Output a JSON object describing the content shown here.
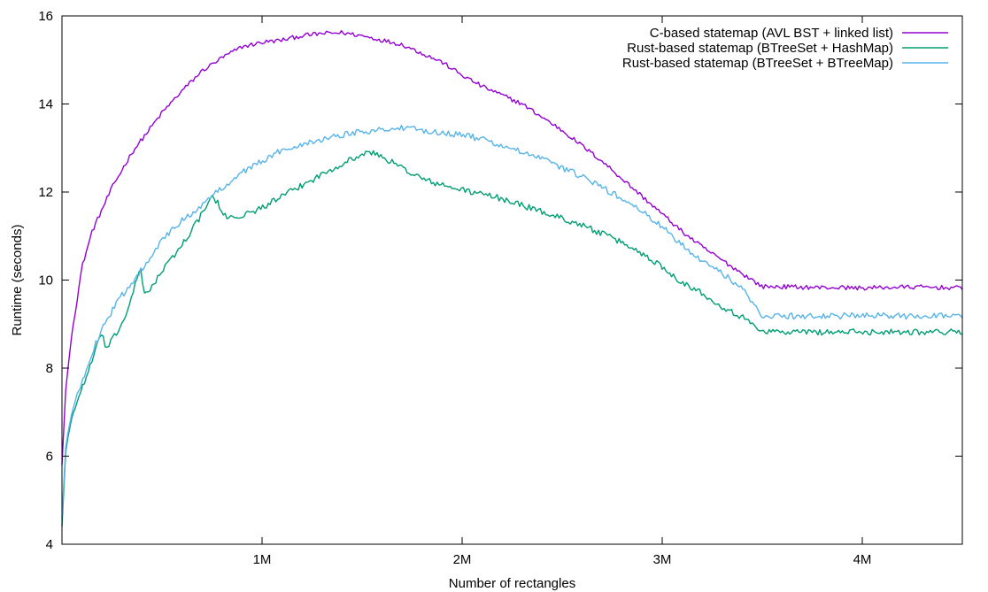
{
  "chart_data": {
    "type": "line",
    "title": "",
    "xlabel": "Number of rectangles",
    "ylabel": "Runtime (seconds)",
    "xlim": [
      0,
      4500000
    ],
    "ylim": [
      4,
      16
    ],
    "grid": false,
    "legend_position": "top-right",
    "x_ticks": [
      {
        "value": 1000000,
        "label": "1M"
      },
      {
        "value": 2000000,
        "label": "2M"
      },
      {
        "value": 3000000,
        "label": "3M"
      },
      {
        "value": 4000000,
        "label": "4M"
      }
    ],
    "y_ticks": [
      {
        "value": 4,
        "label": "4"
      },
      {
        "value": 6,
        "label": "6"
      },
      {
        "value": 8,
        "label": "8"
      },
      {
        "value": 10,
        "label": "10"
      },
      {
        "value": 12,
        "label": "12"
      },
      {
        "value": 14,
        "label": "14"
      },
      {
        "value": 16,
        "label": "16"
      }
    ],
    "series": [
      {
        "name": "C-based statemap (AVL BST + linked list)",
        "color": "#9400d3",
        "x": [
          0,
          20000,
          50000,
          100000,
          150000,
          200000,
          250000,
          300000,
          350000,
          400000,
          450000,
          500000,
          600000,
          700000,
          800000,
          900000,
          1000000,
          1100000,
          1200000,
          1300000,
          1400000,
          1500000,
          1600000,
          1700000,
          1800000,
          1900000,
          2000000,
          2100000,
          2200000,
          2300000,
          2400000,
          2500000,
          2600000,
          2700000,
          2800000,
          2900000,
          3000000,
          3100000,
          3200000,
          3300000,
          3400000,
          3500000,
          3600000,
          3700000,
          3800000,
          3900000,
          4000000,
          4100000,
          4200000,
          4300000,
          4400000,
          4500000
        ],
        "values": [
          5.8,
          7.6,
          8.8,
          10.3,
          11.1,
          11.6,
          12.1,
          12.5,
          12.9,
          13.2,
          13.5,
          13.8,
          14.3,
          14.75,
          15.05,
          15.3,
          15.4,
          15.45,
          15.55,
          15.6,
          15.62,
          15.55,
          15.45,
          15.35,
          15.15,
          14.95,
          14.65,
          14.4,
          14.2,
          14.0,
          13.7,
          13.4,
          13.05,
          12.7,
          12.3,
          11.9,
          11.5,
          11.1,
          10.75,
          10.45,
          10.15,
          9.85,
          9.85,
          9.84,
          9.83,
          9.83,
          9.82,
          9.83,
          9.84,
          9.84,
          9.83,
          9.82
        ],
        "jitter": 0.05
      },
      {
        "name": "Rust-based statemap (BTreeSet + HashMap)",
        "color": "#009e73",
        "x": [
          0,
          20000,
          50000,
          100000,
          150000,
          200000,
          220000,
          300000,
          350000,
          390000,
          410000,
          450000,
          500000,
          600000,
          700000,
          750000,
          780000,
          800000,
          900000,
          1000000,
          1100000,
          1200000,
          1300000,
          1400000,
          1500000,
          1550000,
          1600000,
          1700000,
          1800000,
          1900000,
          2000000,
          2100000,
          2200000,
          2300000,
          2400000,
          2500000,
          2600000,
          2700000,
          2800000,
          2900000,
          3000000,
          3100000,
          3200000,
          3300000,
          3400000,
          3500000,
          3600000,
          3800000,
          4000000,
          4200000,
          4400000,
          4500000
        ],
        "values": [
          4.4,
          6.2,
          6.9,
          7.55,
          8.15,
          8.85,
          8.4,
          9.0,
          9.6,
          10.3,
          9.7,
          9.85,
          10.2,
          10.8,
          11.5,
          11.9,
          11.75,
          11.45,
          11.45,
          11.65,
          11.9,
          12.15,
          12.4,
          12.65,
          12.85,
          12.9,
          12.8,
          12.55,
          12.3,
          12.15,
          12.05,
          11.95,
          11.85,
          11.7,
          11.55,
          11.4,
          11.25,
          11.05,
          10.85,
          10.6,
          10.3,
          9.95,
          9.7,
          9.4,
          9.15,
          8.85,
          8.82,
          8.82,
          8.82,
          8.83,
          8.82,
          8.82
        ],
        "jitter": 0.07
      },
      {
        "name": "Rust-based statemap (BTreeSet + BTreeMap)",
        "color": "#56b4e9",
        "x": [
          0,
          20000,
          50000,
          100000,
          150000,
          200000,
          250000,
          300000,
          350000,
          400000,
          450000,
          500000,
          600000,
          700000,
          800000,
          900000,
          1000000,
          1100000,
          1200000,
          1300000,
          1400000,
          1500000,
          1600000,
          1700000,
          1800000,
          1900000,
          2000000,
          2100000,
          2200000,
          2300000,
          2400000,
          2500000,
          2600000,
          2700000,
          2800000,
          2900000,
          3000000,
          3100000,
          3200000,
          3300000,
          3400000,
          3500000,
          3600000,
          3800000,
          4000000,
          4200000,
          4400000,
          4500000
        ],
        "values": [
          4.6,
          6.3,
          7.0,
          7.7,
          8.35,
          8.9,
          9.3,
          9.65,
          9.95,
          10.25,
          10.6,
          10.9,
          11.35,
          11.7,
          12.1,
          12.45,
          12.7,
          12.95,
          13.1,
          13.2,
          13.3,
          13.38,
          13.42,
          13.45,
          13.4,
          13.35,
          13.3,
          13.2,
          13.05,
          12.9,
          12.75,
          12.55,
          12.35,
          12.1,
          11.85,
          11.55,
          11.2,
          10.8,
          10.45,
          10.15,
          9.8,
          9.2,
          9.18,
          9.18,
          9.19,
          9.18,
          9.2,
          9.18
        ],
        "jitter": 0.07
      }
    ]
  }
}
